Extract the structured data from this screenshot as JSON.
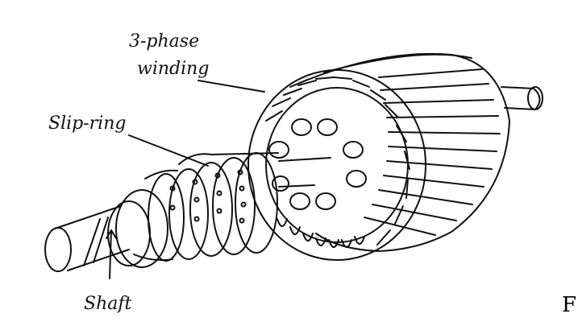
{
  "labels": {
    "winding_line1": "3-phase",
    "winding_line2": "winding",
    "slip_ring": "Slip-ring",
    "shaft": "Shaft"
  },
  "edge_text": "F",
  "colors": {
    "ink": "#111111",
    "paper": "#ffffff"
  }
}
